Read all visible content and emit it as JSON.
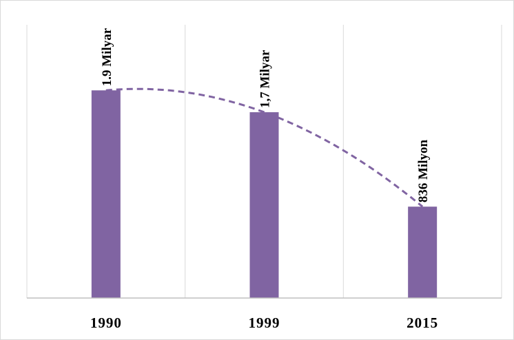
{
  "chart_data": {
    "type": "bar",
    "categories": [
      "1990",
      "1999",
      "2015"
    ],
    "values": [
      1.9,
      1.7,
      0.836
    ],
    "value_unit": "billion",
    "data_labels": [
      "1.9 Milyar",
      "1,7 Milyar",
      "836 Milyon"
    ],
    "title": "",
    "xlabel": "",
    "ylabel": "",
    "ylim": [
      0,
      2.5
    ],
    "grid": "vertical gridlines between categories",
    "legend": "none",
    "trendline": "polynomial (dashed)",
    "colors": {
      "bar": "#8064a2",
      "trendline": "#8064a2",
      "gridline": "#d9d9d9",
      "axis": "#bfbfbf"
    }
  }
}
